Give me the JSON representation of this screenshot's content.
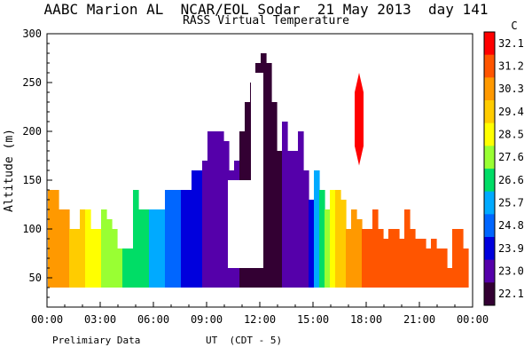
{
  "chart_data": {
    "type": "heatmap",
    "title": "AABC Marion AL  NCAR/EOL Sodar  21 May 2013  day 141",
    "subtitle": "RASS Virtual Temperature",
    "xlabel": "UT  (CDT - 5)",
    "ylabel": "Altitude (m)",
    "xlim": [
      0,
      24
    ],
    "ylim": [
      20,
      300
    ],
    "x_ticks": [
      "00:00",
      "03:00",
      "06:00",
      "09:00",
      "12:00",
      "15:00",
      "18:00",
      "21:00",
      "00:00"
    ],
    "y_ticks": [
      "50",
      "100",
      "150",
      "200",
      "250",
      "300"
    ],
    "colorbar_unit": "C",
    "colorbar_labels": [
      "32.1",
      "31.2",
      "30.3",
      "29.4",
      "28.5",
      "27.6",
      "26.6",
      "25.7",
      "24.8",
      "23.9",
      "23.0",
      "22.1"
    ],
    "colorbar_colors": [
      "#ff0000",
      "#ff5500",
      "#ff9900",
      "#ffcc00",
      "#ffff00",
      "#99ff33",
      "#00dd66",
      "#00aaff",
      "#0066ff",
      "#0000dd",
      "#5500aa",
      "#330033"
    ],
    "bottom_note": "Prelimiary Data",
    "columns": [
      {
        "x": 0.2,
        "top": 140,
        "value": 30.3
      },
      {
        "x": 0.5,
        "top": 140,
        "value": 30.3
      },
      {
        "x": 0.8,
        "top": 120,
        "value": 30.3
      },
      {
        "x": 1.1,
        "top": 120,
        "value": 29.9
      },
      {
        "x": 1.4,
        "top": 100,
        "value": 29.5
      },
      {
        "x": 1.7,
        "top": 100,
        "value": 29.4
      },
      {
        "x": 2.0,
        "top": 120,
        "value": 29.0
      },
      {
        "x": 2.3,
        "top": 120,
        "value": 28.7
      },
      {
        "x": 2.6,
        "top": 100,
        "value": 28.5
      },
      {
        "x": 2.9,
        "top": 100,
        "value": 28.2
      },
      {
        "x": 3.2,
        "top": 120,
        "value": 27.9
      },
      {
        "x": 3.5,
        "top": 110,
        "value": 27.6
      },
      {
        "x": 3.8,
        "top": 100,
        "value": 27.6
      },
      {
        "x": 4.1,
        "top": 80,
        "value": 27.3
      },
      {
        "x": 4.4,
        "top": 80,
        "value": 27.0
      },
      {
        "x": 4.7,
        "top": 80,
        "value": 26.8
      },
      {
        "x": 5.0,
        "top": 140,
        "value": 26.6
      },
      {
        "x": 5.3,
        "top": 120,
        "value": 26.6
      },
      {
        "x": 5.6,
        "top": 120,
        "value": 26.2
      },
      {
        "x": 5.9,
        "top": 120,
        "value": 25.9
      },
      {
        "x": 6.2,
        "top": 120,
        "value": 25.7
      },
      {
        "x": 6.5,
        "top": 120,
        "value": 25.5
      },
      {
        "x": 6.8,
        "top": 140,
        "value": 25.2
      },
      {
        "x": 7.1,
        "top": 140,
        "value": 24.9
      },
      {
        "x": 7.4,
        "top": 140,
        "value": 24.6
      },
      {
        "x": 7.7,
        "top": 140,
        "value": 24.3
      },
      {
        "x": 8.0,
        "top": 140,
        "value": 24.1
      },
      {
        "x": 8.3,
        "top": 160,
        "value": 23.9
      },
      {
        "x": 8.6,
        "top": 160,
        "value": 23.6
      },
      {
        "x": 8.9,
        "top": 170,
        "value": 23.3
      },
      {
        "x": 9.2,
        "top": 200,
        "value": 23.1
      },
      {
        "x": 9.5,
        "top": 200,
        "value": 23.0
      },
      {
        "x": 9.8,
        "top": 200,
        "value": 22.9
      },
      {
        "x": 10.1,
        "top": 190,
        "value": 22.8
      },
      {
        "x": 10.4,
        "top": 160,
        "value": 22.7
      },
      {
        "x": 10.7,
        "top": 170,
        "value": 22.6
      },
      {
        "x": 11.0,
        "top": 200,
        "value": 22.5
      },
      {
        "x": 11.3,
        "top": 230,
        "value": 22.3
      },
      {
        "x": 11.6,
        "top": 250,
        "value": 22.1
      },
      {
        "x": 11.9,
        "top": 270,
        "value": 22.1
      },
      {
        "x": 12.2,
        "top": 280,
        "value": 22.1
      },
      {
        "x": 12.5,
        "top": 270,
        "value": 22.1
      },
      {
        "x": 12.8,
        "top": 230,
        "value": 22.2
      },
      {
        "x": 13.1,
        "top": 180,
        "value": 22.3
      },
      {
        "x": 13.4,
        "top": 210,
        "value": 22.6
      },
      {
        "x": 13.7,
        "top": 180,
        "value": 22.8
      },
      {
        "x": 14.0,
        "top": 180,
        "value": 23.0
      },
      {
        "x": 14.3,
        "top": 200,
        "value": 23.1
      },
      {
        "x": 14.6,
        "top": 160,
        "value": 23.4
      },
      {
        "x": 14.9,
        "top": 130,
        "value": 24.2
      },
      {
        "x": 15.2,
        "top": 160,
        "value": 25.3
      },
      {
        "x": 15.5,
        "top": 140,
        "value": 26.4
      },
      {
        "x": 15.8,
        "top": 120,
        "value": 27.6
      },
      {
        "x": 16.1,
        "top": 140,
        "value": 28.3
      },
      {
        "x": 16.4,
        "top": 140,
        "value": 29.0
      },
      {
        "x": 16.7,
        "top": 130,
        "value": 29.8
      },
      {
        "x": 17.0,
        "top": 100,
        "value": 30.3
      },
      {
        "x": 17.3,
        "top": 120,
        "value": 30.5
      },
      {
        "x": 17.6,
        "top": 110,
        "value": 30.6
      },
      {
        "x": 17.9,
        "top": 100,
        "value": 30.8
      },
      {
        "x": 18.2,
        "top": 100,
        "value": 30.9
      },
      {
        "x": 18.5,
        "top": 120,
        "value": 31.0
      },
      {
        "x": 18.8,
        "top": 100,
        "value": 31.1
      },
      {
        "x": 19.1,
        "top": 90,
        "value": 31.1
      },
      {
        "x": 19.4,
        "top": 100,
        "value": 31.2
      },
      {
        "x": 19.7,
        "top": 100,
        "value": 31.2
      },
      {
        "x": 20.0,
        "top": 90,
        "value": 31.3
      },
      {
        "x": 20.3,
        "top": 120,
        "value": 31.3
      },
      {
        "x": 20.6,
        "top": 100,
        "value": 31.4
      },
      {
        "x": 20.9,
        "top": 90,
        "value": 31.4
      },
      {
        "x": 21.2,
        "top": 90,
        "value": 31.4
      },
      {
        "x": 21.5,
        "top": 80,
        "value": 31.5
      },
      {
        "x": 21.8,
        "top": 90,
        "value": 31.5
      },
      {
        "x": 22.1,
        "top": 80,
        "value": 31.5
      },
      {
        "x": 22.4,
        "top": 80,
        "value": 31.6
      },
      {
        "x": 22.7,
        "top": 60,
        "value": 31.5
      },
      {
        "x": 23.0,
        "top": 100,
        "value": 31.4
      },
      {
        "x": 23.3,
        "top": 100,
        "value": 31.3
      },
      {
        "x": 23.6,
        "top": 80,
        "value": 31.2
      }
    ],
    "column_bottom": 40,
    "gaps": [
      {
        "x0": 11.5,
        "x1": 12.2,
        "y0": 60,
        "y1": 260
      },
      {
        "x0": 10.2,
        "x1": 11.5,
        "y0": 60,
        "y1": 150
      }
    ],
    "hot_plume": {
      "x": 17.6,
      "top": 260,
      "bottom": 165,
      "value": 32.1
    }
  }
}
